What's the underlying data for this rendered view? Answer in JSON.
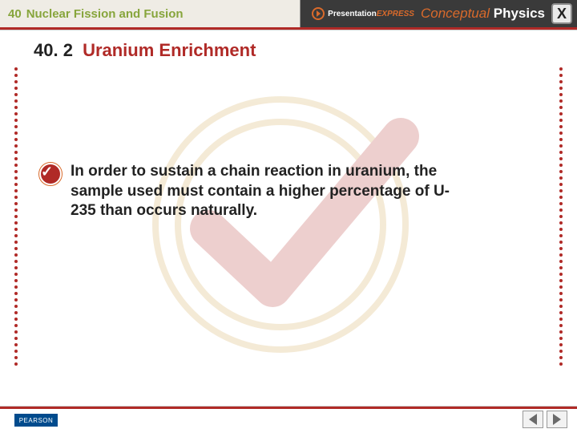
{
  "colors": {
    "header_bg_left": "#efece5",
    "header_bg_right": "#3a3a3a",
    "green": "#87a53c",
    "red": "#b02a27",
    "orange": "#d96a2b",
    "black": "#222222",
    "pearson_bg": "#004b8d",
    "pearson_fg": "#ffffff",
    "white": "#ffffff",
    "rule_thin": "#cfcfcf",
    "watermark_ring": "#cfa24a",
    "watermark_check": "#b02a27",
    "dot": "#b02a27",
    "close_border": "#8a8a8a",
    "close_fill": "#e9e9e9",
    "arrow_fill": "#6a6a6a"
  },
  "header": {
    "chapter_number": "40",
    "chapter_title": "Nuclear Fission and Fusion",
    "pe_pres": "Presentation",
    "pe_exp": "EXPRESS",
    "brand_c": "Conceptual",
    "brand_p": "Physics",
    "close_label": "X"
  },
  "section": {
    "number": "40. 2",
    "title": "Uranium Enrichment"
  },
  "body": {
    "text": "In order to sustain a chain reaction in uranium, the sample used must contain a higher percentage of U-235 than occurs naturally."
  },
  "footer": {
    "pearson": "PEARSON"
  },
  "layout": {
    "dots_count": 47,
    "dots_spacing": 8
  }
}
